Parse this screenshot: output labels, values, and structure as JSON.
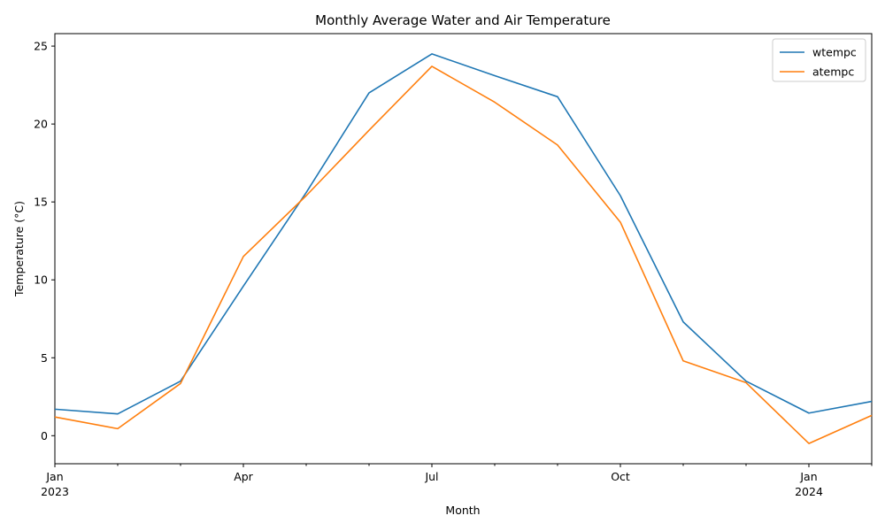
{
  "chart_data": {
    "type": "line",
    "title": "Monthly Average Water and Air Temperature",
    "xlabel": "Month",
    "ylabel": "Temperature (°C)",
    "x": [
      "2023-01",
      "2023-02",
      "2023-03",
      "2023-04",
      "2023-05",
      "2023-06",
      "2023-07",
      "2023-08",
      "2023-09",
      "2023-10",
      "2023-11",
      "2023-12",
      "2024-01",
      "2024-02"
    ],
    "x_ticks": [
      {
        "index": 0,
        "label": "Jan",
        "sublabel": "2023",
        "major": true
      },
      {
        "index": 1,
        "label": "",
        "sublabel": "",
        "major": false
      },
      {
        "index": 2,
        "label": "",
        "sublabel": "",
        "major": false
      },
      {
        "index": 3,
        "label": "Apr",
        "sublabel": "",
        "major": true
      },
      {
        "index": 4,
        "label": "",
        "sublabel": "",
        "major": false
      },
      {
        "index": 5,
        "label": "",
        "sublabel": "",
        "major": false
      },
      {
        "index": 6,
        "label": "Jul",
        "sublabel": "",
        "major": true
      },
      {
        "index": 7,
        "label": "",
        "sublabel": "",
        "major": false
      },
      {
        "index": 8,
        "label": "",
        "sublabel": "",
        "major": false
      },
      {
        "index": 9,
        "label": "Oct",
        "sublabel": "",
        "major": true
      },
      {
        "index": 10,
        "label": "",
        "sublabel": "",
        "major": false
      },
      {
        "index": 11,
        "label": "",
        "sublabel": "",
        "major": false
      },
      {
        "index": 12,
        "label": "Jan",
        "sublabel": "2024",
        "major": true
      },
      {
        "index": 13,
        "label": "",
        "sublabel": "",
        "major": false
      }
    ],
    "y_ticks": [
      0,
      5,
      10,
      15,
      20,
      25
    ],
    "ylim": [
      -1.8,
      25.8
    ],
    "series": [
      {
        "name": "wtempc",
        "color": "#1f77b4",
        "values": [
          1.7,
          1.4,
          3.5,
          9.6,
          15.6,
          22.0,
          24.5,
          23.1,
          21.75,
          15.4,
          7.3,
          3.5,
          1.45,
          2.2
        ]
      },
      {
        "name": "atempc",
        "color": "#ff7f0e",
        "values": [
          1.2,
          0.45,
          3.35,
          11.5,
          15.4,
          19.6,
          23.7,
          21.4,
          18.65,
          13.7,
          4.8,
          3.4,
          -0.5,
          1.3
        ]
      }
    ],
    "legend": "top-right",
    "grid": false
  }
}
